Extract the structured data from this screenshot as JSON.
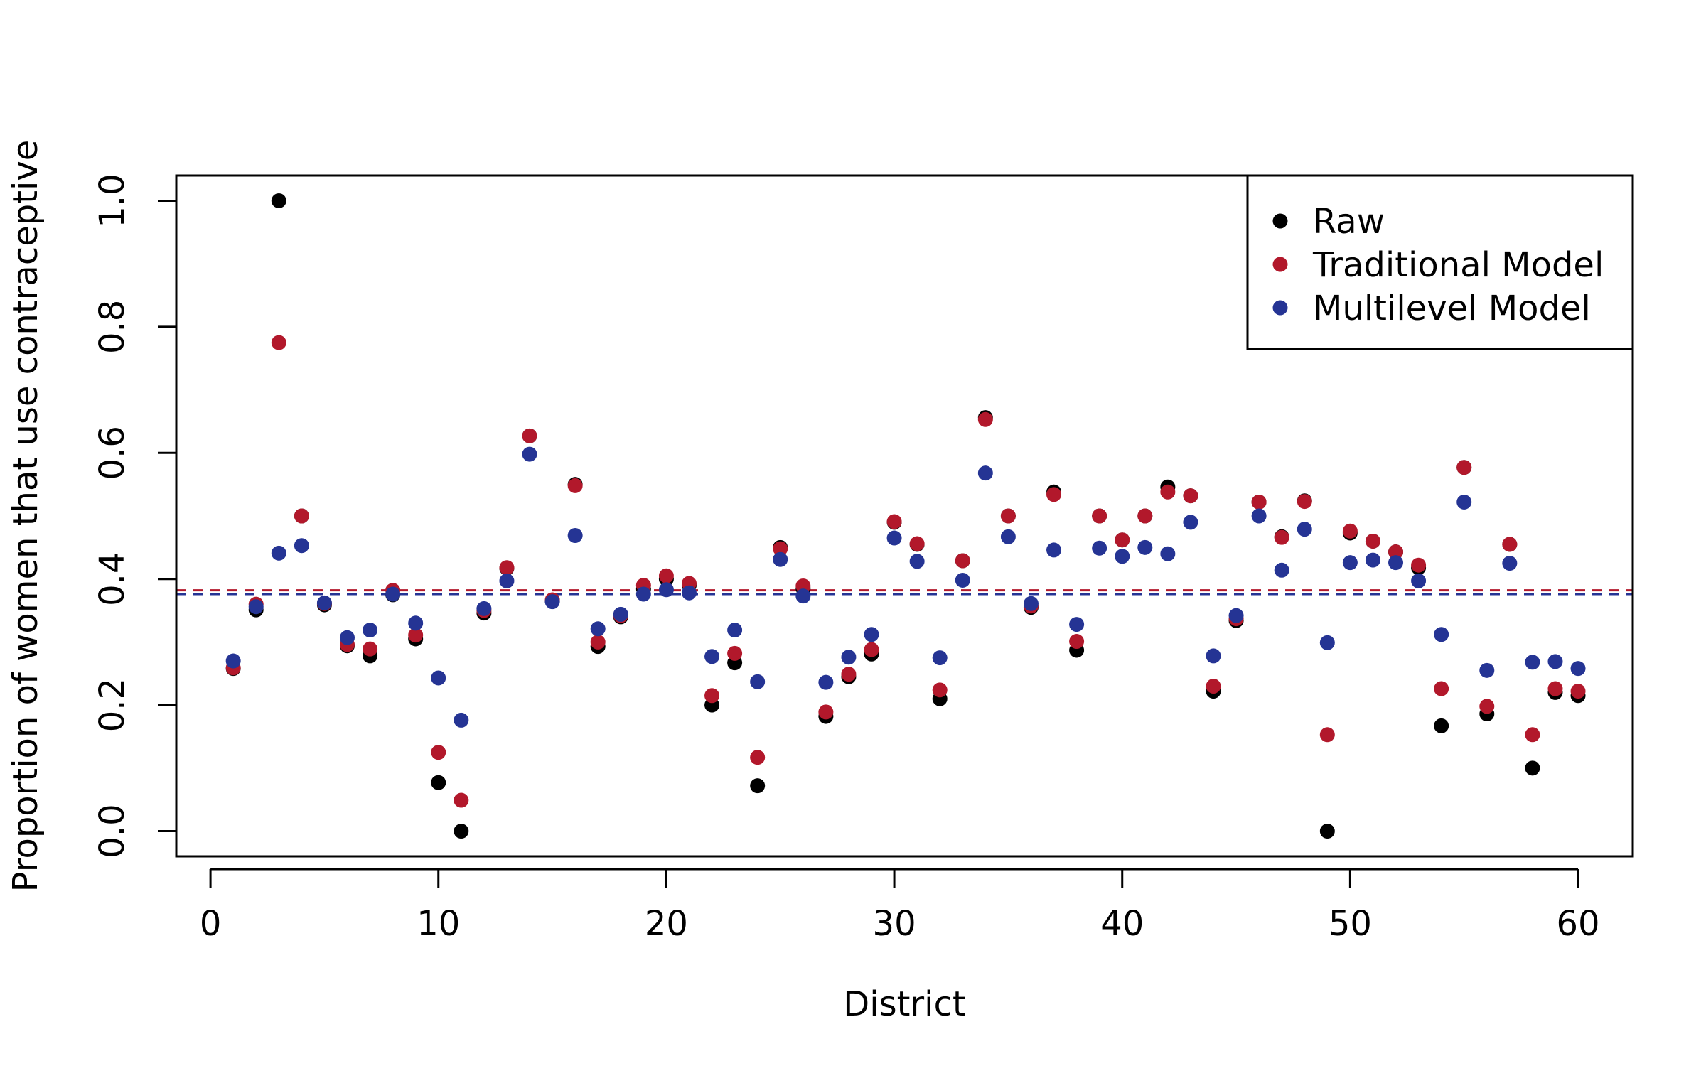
{
  "chart_data": {
    "type": "scatter",
    "xlabel": "District",
    "ylabel": "Proportion of women that use contraceptive",
    "xlim": [
      -1.5,
      62.4
    ],
    "ylim": [
      -0.04,
      1.04
    ],
    "x_ticks": [
      0,
      10,
      20,
      30,
      40,
      50,
      60
    ],
    "y_ticks": [
      0.0,
      0.2,
      0.4,
      0.6,
      0.8,
      1.0
    ],
    "x_tick_labels": [
      "0",
      "10",
      "20",
      "30",
      "40",
      "50",
      "60"
    ],
    "y_tick_labels": [
      "0.0",
      "0.2",
      "0.4",
      "0.6",
      "0.8",
      "1.0"
    ],
    "grid": false,
    "legend_position": "top-right",
    "x": [
      1,
      2,
      3,
      4,
      5,
      6,
      7,
      8,
      9,
      10,
      11,
      12,
      13,
      14,
      15,
      16,
      17,
      18,
      19,
      20,
      21,
      22,
      23,
      24,
      25,
      26,
      27,
      28,
      29,
      30,
      31,
      32,
      33,
      34,
      35,
      36,
      37,
      38,
      39,
      40,
      41,
      42,
      43,
      44,
      45,
      46,
      47,
      48,
      49,
      50,
      51,
      52,
      53,
      54,
      55,
      56,
      57,
      58,
      59,
      60
    ],
    "series": [
      {
        "name": "Raw",
        "color": "#000000",
        "values": [
          0.258,
          0.351,
          1.0,
          0.5,
          0.359,
          0.294,
          0.278,
          0.375,
          0.305,
          0.077,
          0.0,
          0.346,
          0.417,
          0.627,
          0.365,
          0.55,
          0.293,
          0.34,
          0.384,
          0.4,
          0.39,
          0.2,
          0.267,
          0.072,
          0.45,
          0.385,
          0.182,
          0.245,
          0.281,
          0.49,
          0.455,
          0.21,
          0.429,
          0.656,
          0.5,
          0.355,
          0.538,
          0.287,
          0.5,
          0.462,
          0.5,
          0.546,
          0.532,
          0.222,
          0.334,
          0.522,
          0.467,
          0.524,
          0.0,
          0.473,
          0.46,
          0.443,
          0.418,
          0.167,
          0.577,
          0.186,
          0.455,
          0.1,
          0.22,
          0.215
        ]
      },
      {
        "name": "Traditional Model",
        "color": "#b2182b",
        "values": [
          0.259,
          0.36,
          0.775,
          0.5,
          0.361,
          0.296,
          0.289,
          0.382,
          0.311,
          0.125,
          0.049,
          0.35,
          0.418,
          0.627,
          0.367,
          0.548,
          0.3,
          0.342,
          0.39,
          0.405,
          0.393,
          0.215,
          0.282,
          0.117,
          0.448,
          0.389,
          0.189,
          0.249,
          0.288,
          0.491,
          0.456,
          0.224,
          0.429,
          0.653,
          0.5,
          0.357,
          0.534,
          0.301,
          0.5,
          0.462,
          0.5,
          0.538,
          0.532,
          0.23,
          0.337,
          0.522,
          0.466,
          0.523,
          0.153,
          0.476,
          0.46,
          0.443,
          0.422,
          0.226,
          0.577,
          0.198,
          0.455,
          0.153,
          0.226,
          0.222
        ]
      },
      {
        "name": "Multilevel Model",
        "color": "#253494",
        "values": [
          0.27,
          0.356,
          0.441,
          0.453,
          0.362,
          0.307,
          0.319,
          0.376,
          0.33,
          0.243,
          0.176,
          0.353,
          0.397,
          0.598,
          0.364,
          0.469,
          0.321,
          0.344,
          0.376,
          0.383,
          0.378,
          0.277,
          0.319,
          0.237,
          0.431,
          0.373,
          0.236,
          0.276,
          0.312,
          0.465,
          0.428,
          0.275,
          0.398,
          0.568,
          0.467,
          0.361,
          0.446,
          0.328,
          0.449,
          0.436,
          0.45,
          0.44,
          0.49,
          0.278,
          0.342,
          0.5,
          0.414,
          0.479,
          0.299,
          0.426,
          0.43,
          0.426,
          0.397,
          0.312,
          0.522,
          0.255,
          0.425,
          0.268,
          0.269,
          0.258
        ]
      }
    ],
    "reference_lines": [
      {
        "series": "Traditional Model",
        "y": 0.382,
        "color": "#b2182b",
        "style": "dashed"
      },
      {
        "series": "Multilevel Model",
        "y": 0.376,
        "color": "#253494",
        "style": "dashed"
      }
    ]
  }
}
